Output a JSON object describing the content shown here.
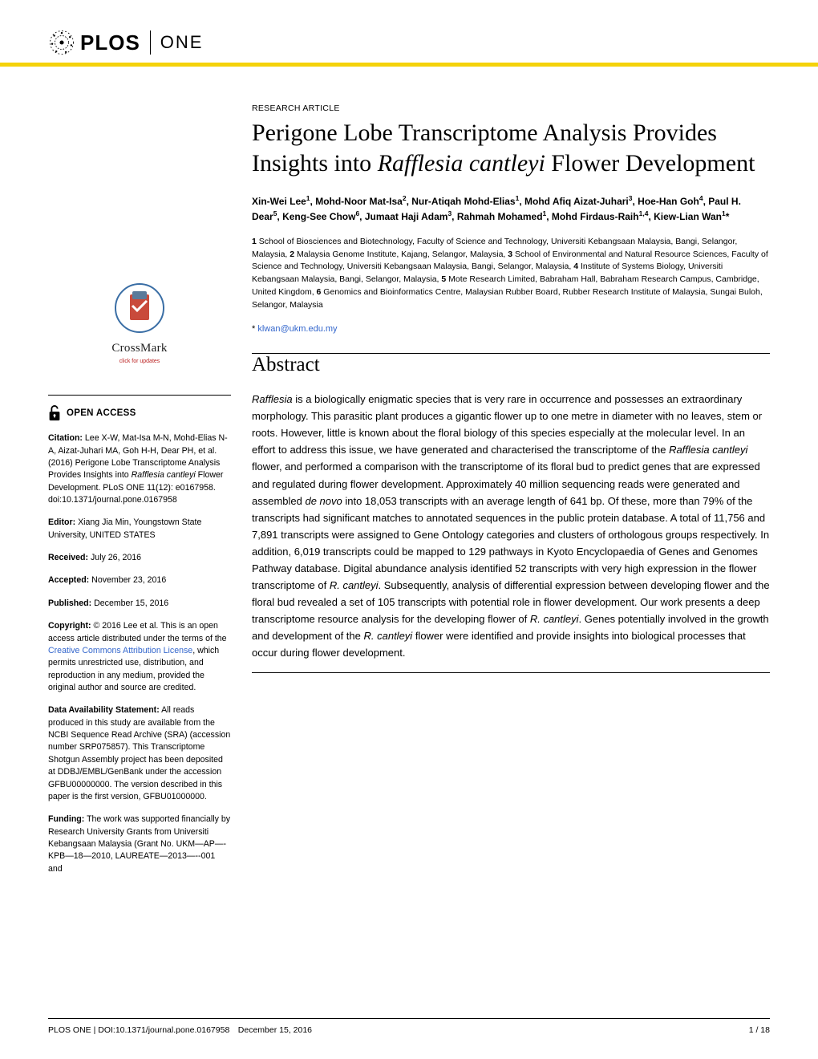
{
  "brand": {
    "plos": "PLOS",
    "one": "ONE"
  },
  "crossmark": {
    "label": "CrossMark",
    "sub": "click for updates"
  },
  "open_access_label": "OPEN ACCESS",
  "sidebar": {
    "citation_label": "Citation:",
    "citation_text": " Lee X-W, Mat-Isa M-N, Mohd-Elias N-A, Aizat-Juhari MA, Goh H-H, Dear PH, et al. (2016) Perigone Lobe Transcriptome Analysis Provides Insights into ",
    "citation_italic": "Rafflesia cantleyi",
    "citation_text2": " Flower Development. PLoS ONE 11(12): e0167958. doi:10.1371/journal.pone.0167958",
    "editor_label": "Editor:",
    "editor_text": " Xiang Jia Min, Youngstown State University, UNITED STATES",
    "received_label": "Received:",
    "received_text": " July 26, 2016",
    "accepted_label": "Accepted:",
    "accepted_text": " November 23, 2016",
    "published_label": "Published:",
    "published_text": " December 15, 2016",
    "copyright_label": "Copyright:",
    "copyright_text1": " © 2016 Lee et al. This is an open access article distributed under the terms of the ",
    "copyright_link": "Creative Commons Attribution License",
    "copyright_text2": ", which permits unrestricted use, distribution, and reproduction in any medium, provided the original author and source are credited.",
    "data_label": "Data Availability Statement:",
    "data_text": " All reads produced in this study are available from the NCBI Sequence Read Archive (SRA) (accession number SRP075857). This Transcriptome Shotgun Assembly project has been deposited at DDBJ/EMBL/GenBank under the accession GFBU00000000. The version described in this paper is the first version, GFBU01000000.",
    "funding_label": "Funding:",
    "funding_text": " The work was supported financially by Research University Grants from Universiti Kebangsaan Malaysia (Grant No. UKM—AP—-KPB—18—2010, LAUREATE—2013—--001 and"
  },
  "article": {
    "type": "RESEARCH ARTICLE",
    "title_1": "Perigone Lobe Transcriptome Analysis Provides Insights into ",
    "title_italic": "Rafflesia cantleyi",
    "title_2": " Flower Development",
    "authors_html": "Xin-Wei Lee<sup>1</sup>, Mohd-Noor Mat-Isa<sup>2</sup>, Nur-Atiqah Mohd-Elias<sup>1</sup>, Mohd Afiq Aizat-Juhari<sup>3</sup>, Hoe-Han Goh<sup>4</sup>, Paul H. Dear<sup>5</sup>, Keng-See Chow<sup>6</sup>, Jumaat Haji Adam<sup>3</sup>, Rahmah Mohamed<sup>1</sup>, Mohd Firdaus-Raih<sup>1,4</sup>, Kiew-Lian Wan<sup>1</sup>*",
    "affiliations_html": "<span class=\"num\">1</span> School of Biosciences and Biotechnology, Faculty of Science and Technology, Universiti Kebangsaan Malaysia, Bangi, Selangor, Malaysia, <span class=\"num\">2</span> Malaysia Genome Institute, Kajang, Selangor, Malaysia, <span class=\"num\">3</span> School of Environmental and Natural Resource Sciences, Faculty of Science and Technology, Universiti Kebangsaan Malaysia, Bangi, Selangor, Malaysia, <span class=\"num\">4</span> Institute of Systems Biology, Universiti Kebangsaan Malaysia, Bangi, Selangor, Malaysia, <span class=\"num\">5</span> Mote Research Limited, Babraham Hall, Babraham Research Campus, Cambridge, United Kingdom, <span class=\"num\">6</span> Genomics and Bioinformatics Centre, Malaysian Rubber Board, Rubber Research Institute of Malaysia, Sungai Buloh, Selangor, Malaysia",
    "corr_star": "* ",
    "corr_email": "klwan@ukm.edu.my",
    "abstract_heading": "Abstract",
    "abstract_html": "<span class=\"italic\">Rafflesia</span> is a biologically enigmatic species that is very rare in occurrence and possesses an extraordinary morphology. This parasitic plant produces a gigantic flower up to one metre in diameter with no leaves, stem or roots. However, little is known about the floral biology of this species especially at the molecular level. In an effort to address this issue, we have generated and characterised the transcriptome of the <span class=\"italic\">Rafflesia cantleyi</span> flower, and performed a comparison with the transcriptome of its floral bud to predict genes that are expressed and regulated during flower development. Approximately 40 million sequencing reads were generated and assembled <span class=\"italic\">de novo</span> into 18,053 transcripts with an average length of 641 bp. Of these, more than 79% of the transcripts had significant matches to annotated sequences in the public protein database. A total of 11,756 and 7,891 transcripts were assigned to Gene Ontology categories and clusters of orthologous groups respectively. In addition, 6,019 transcripts could be mapped to 129 pathways in Kyoto Encyclopaedia of Genes and Genomes Pathway database. Digital abundance analysis identified 52 transcripts with very high expression in the flower transcriptome of <span class=\"italic\">R. cantleyi</span>. Subsequently, analysis of differential expression between developing flower and the floral bud revealed a set of 105 transcripts with potential role in flower development. Our work presents a deep transcriptome resource analysis for the developing flower of <span class=\"italic\">R. cantleyi</span>. Genes potentially involved in the growth and development of the <span class=\"italic\">R. cantleyi</span> flower were identified and provide insights into biological processes that occur during flower development."
  },
  "footer": {
    "left": "PLOS ONE | DOI:10.1371/journal.pone.0167958 December 15, 2016",
    "right": "1 / 18"
  }
}
